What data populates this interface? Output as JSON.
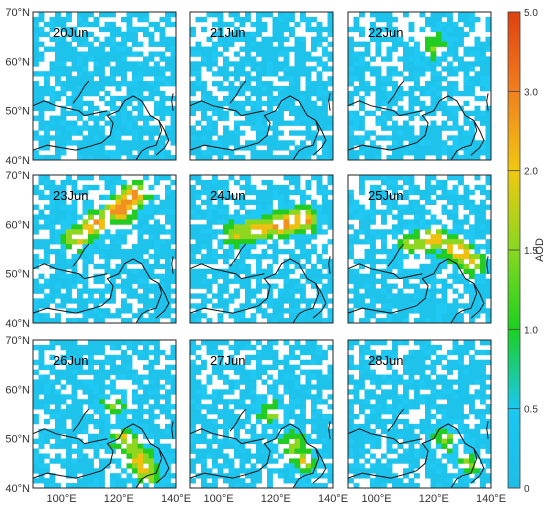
{
  "panels": [
    {
      "label": "20Jun",
      "plume": []
    },
    {
      "label": "21Jun",
      "plume": []
    },
    {
      "label": "22Jun",
      "plume": [
        [
          120,
          63,
          1.2
        ]
      ]
    },
    {
      "label": "23Jun",
      "plume": [
        [
          105,
          57,
          1.8
        ],
        [
          112,
          60,
          2.2
        ],
        [
          120,
          63,
          2.6
        ],
        [
          126,
          66,
          2.4
        ]
      ]
    },
    {
      "label": "24Jun",
      "plume": [
        [
          106,
          58,
          1.5
        ],
        [
          114,
          59,
          1.8
        ],
        [
          122,
          60,
          2.3
        ],
        [
          130,
          61,
          2.2
        ]
      ]
    },
    {
      "label": "25Jun",
      "plume": [
        [
          112,
          56,
          1.4
        ],
        [
          120,
          57,
          1.8
        ],
        [
          128,
          55,
          1.9
        ],
        [
          133,
          52,
          1.6
        ]
      ]
    },
    {
      "label": "26Jun",
      "plume": [
        [
          118,
          57,
          1.3
        ],
        [
          122,
          50,
          1.5
        ],
        [
          127,
          46,
          1.6
        ],
        [
          130,
          43,
          1.4
        ]
      ]
    },
    {
      "label": "27Jun",
      "plume": [
        [
          118,
          55,
          1.2
        ],
        [
          126,
          49,
          1.3
        ],
        [
          130,
          45,
          1.5
        ]
      ]
    },
    {
      "label": "28Jun",
      "plume": [
        [
          124,
          50,
          1.1
        ],
        [
          132,
          45,
          1.2
        ]
      ]
    }
  ],
  "lat_ticks": [
    "40°N",
    "50°N",
    "60°N",
    "70°N"
  ],
  "lon_ticks": [
    "100°E",
    "120°E",
    "140°E"
  ],
  "colorbar": {
    "title": "AOD",
    "ticks": [
      "0",
      "0.5",
      "1.0",
      "1.5",
      "2.0",
      "3.0",
      "5.0"
    ],
    "colors": [
      "#1fbde8",
      "#19c8f0",
      "#1bd020",
      "#88d820",
      "#f0c810",
      "#f08020",
      "#e04010"
    ]
  }
}
